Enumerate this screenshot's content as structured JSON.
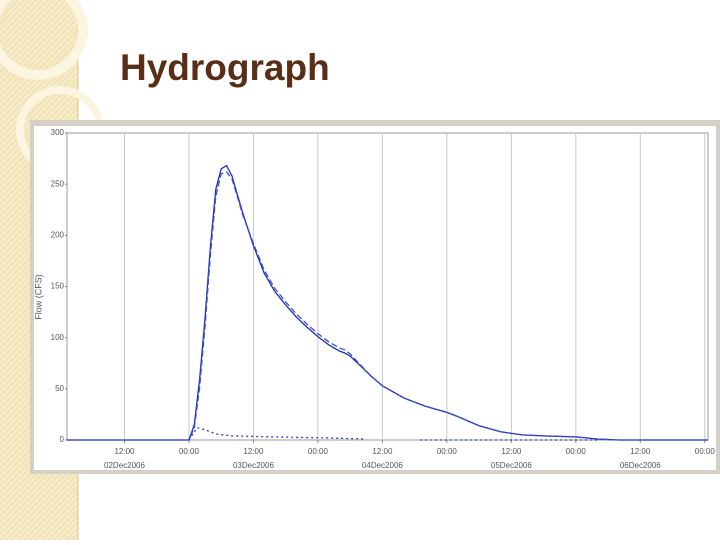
{
  "chart_data": {
    "type": "line",
    "title": "Hydrograph",
    "y_label": "Flow (CFS)",
    "xlim": [
      1.3,
      120.6
    ],
    "ylim": [
      0,
      300
    ],
    "yticks": [
      0,
      50,
      100,
      150,
      200,
      250,
      300
    ],
    "xticks": [
      {
        "value": 12,
        "label": "12:00"
      },
      {
        "value": 24,
        "label": "00:00"
      },
      {
        "value": 36,
        "label": "12:00"
      },
      {
        "value": 48,
        "label": "00:00"
      },
      {
        "value": 60,
        "label": "12:00"
      },
      {
        "value": 72,
        "label": "00:00"
      },
      {
        "value": 84,
        "label": "12:00"
      },
      {
        "value": 96,
        "label": "00:00"
      },
      {
        "value": 108,
        "label": "12:00"
      },
      {
        "value": 120,
        "label": "00:00"
      }
    ],
    "x_date_labels": [
      {
        "value": 12,
        "label": "02Dec2006"
      },
      {
        "value": 36,
        "label": "03Dec2006"
      },
      {
        "value": 60,
        "label": "04Dec2006"
      },
      {
        "value": 84,
        "label": "05Dec2006"
      },
      {
        "value": 108,
        "label": "06Dec2006"
      }
    ],
    "grid": "x",
    "series": [
      {
        "color": "#1f2fb5",
        "dash": "solid",
        "x": [
          1.3,
          24,
          25,
          26,
          27,
          28,
          29,
          30,
          31,
          32,
          33,
          34,
          36,
          38,
          40,
          42,
          44,
          46,
          48,
          50,
          52,
          53,
          54,
          56,
          58,
          60,
          64,
          68,
          72,
          74,
          78,
          82,
          86,
          90,
          96,
          100,
          104,
          120.6
        ],
        "values": [
          0,
          0,
          15,
          60,
          120,
          190,
          245,
          265,
          268,
          258,
          240,
          222,
          190,
          163,
          145,
          132,
          120,
          110,
          101,
          93,
          87,
          85,
          82,
          72,
          62,
          53,
          41,
          33,
          27,
          23,
          14,
          8,
          5,
          4,
          3,
          1,
          0,
          0
        ]
      },
      {
        "color": "#3a4fd0",
        "dash": "dashed",
        "x": [
          1.3,
          24,
          25,
          26,
          27,
          28,
          29,
          30,
          31,
          32,
          33,
          34,
          36,
          38,
          40,
          42,
          44,
          46,
          48,
          50,
          52,
          53,
          54,
          56,
          58,
          60,
          64,
          68,
          72,
          74,
          78,
          82,
          86,
          90,
          96,
          100,
          104,
          120.6
        ],
        "values": [
          0,
          0,
          12,
          52,
          112,
          182,
          238,
          260,
          262,
          255,
          238,
          220,
          192,
          166,
          148,
          135,
          123,
          113,
          104,
          96,
          90,
          88,
          84,
          73,
          62,
          53,
          41,
          33,
          27,
          23,
          14,
          8,
          5,
          4,
          3,
          1,
          0,
          0
        ]
      },
      {
        "color": "#2a3ac0",
        "dash": "dotted",
        "x": [
          24,
          25.5,
          27,
          29,
          32,
          40,
          50,
          57,
          null,
          67,
          80,
          96,
          100
        ],
        "values": [
          0,
          12,
          10,
          6,
          4,
          3,
          2,
          1,
          null,
          0,
          0,
          0,
          0
        ]
      }
    ]
  }
}
